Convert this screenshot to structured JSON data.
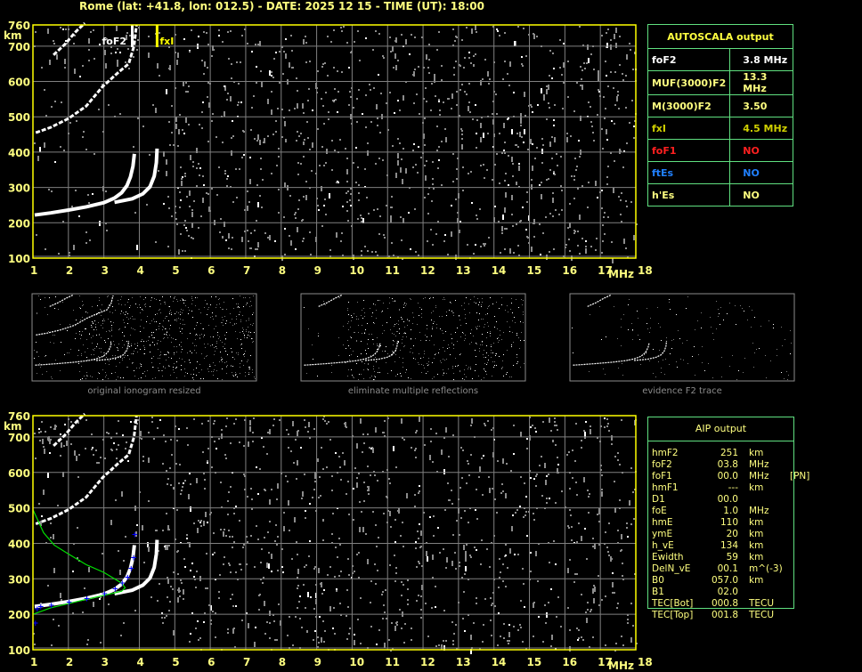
{
  "header": {
    "title": "Rome (lat: +41.8, lon: 012.5) - DATE: 2025 12 15 - TIME (UT): 18:00"
  },
  "colors": {
    "axis": "#ffff00",
    "grid": "#808080",
    "echo": "#ffffff",
    "noise": "#8c8c8c",
    "profile": "#00e000",
    "aip_points": "#0000ff",
    "table_border": "#60e080"
  },
  "autoscala": {
    "title": "AUTOSCALA output",
    "rows": [
      {
        "label": "foF2",
        "value": "3.8 MHz",
        "color": "#ffffff"
      },
      {
        "label": "MUF(3000)F2",
        "value": "13.3 MHz",
        "color": "#ffff80"
      },
      {
        "label": "M(3000)F2",
        "value": "3.50",
        "color": "#ffff80"
      },
      {
        "label": "fxI",
        "value": "4.5 MHz",
        "color": "#d0d000"
      },
      {
        "label": "foF1",
        "value": "NO",
        "color": "#ff2020"
      },
      {
        "label": "ftEs",
        "value": "NO",
        "color": "#2080ff"
      },
      {
        "label": "h'Es",
        "value": "NO",
        "color": "#ffff80"
      }
    ]
  },
  "aip": {
    "title": "AIP output",
    "rows": [
      [
        "hmF2",
        "251",
        "km",
        ""
      ],
      [
        "foF2",
        "03.8",
        "MHz",
        ""
      ],
      [
        "foF1",
        "00.0",
        "MHz",
        "[PN]"
      ],
      [
        "hmF1",
        "---",
        "km",
        ""
      ],
      [
        "D1",
        "00.0",
        "",
        ""
      ],
      [
        "foE",
        "1.0",
        "MHz",
        ""
      ],
      [
        "hmE",
        "110",
        "km",
        ""
      ],
      [
        "ymE",
        "20",
        "km",
        ""
      ],
      [
        "h_vE",
        "134",
        "km",
        ""
      ],
      [
        "Ewidth",
        "59",
        "km",
        ""
      ],
      [
        "DelN_vE",
        "00.1",
        "m^(-3)",
        ""
      ],
      [
        "B0",
        "057.0",
        "km",
        ""
      ],
      [
        "B1",
        "02.0",
        "",
        ""
      ],
      [
        "TEC[Bot]",
        "000.8",
        "TECU",
        ""
      ],
      [
        "TEC[Top]",
        "001.8",
        "TECU",
        ""
      ]
    ]
  },
  "mini_panels": [
    {
      "label": "original ionogram resized"
    },
    {
      "label": "eliminate multiple reflections"
    },
    {
      "label": "evidence F2 trace"
    }
  ],
  "chart_data": [
    {
      "type": "scatter",
      "xlabel": "MHz",
      "ylabel": "km",
      "xlim": [
        1,
        18
      ],
      "ylim": [
        100,
        760
      ],
      "xticks": [
        "1",
        "2",
        "3",
        "4",
        "5",
        "6",
        "7",
        "8",
        "9",
        "10",
        "11",
        "12",
        "13",
        "14",
        "15",
        "16",
        "17",
        "18"
      ],
      "yticks": [
        "100",
        "200",
        "300",
        "400",
        "500",
        "600",
        "700",
        "760"
      ],
      "grid": true,
      "markers": [
        {
          "label": "foF2",
          "x": 3.8,
          "color": "#ffffff"
        },
        {
          "label": "fxI",
          "x": 4.5,
          "color": "#ffff00"
        }
      ],
      "traces": [
        {
          "points": [
            [
              1.05,
              222
            ],
            [
              1.5,
              228
            ],
            [
              2,
              236
            ],
            [
              2.5,
              245
            ],
            [
              3,
              257
            ],
            [
              3.3,
              270
            ],
            [
              3.5,
              285
            ],
            [
              3.65,
              305
            ],
            [
              3.75,
              330
            ],
            [
              3.82,
              360
            ],
            [
              3.86,
              395
            ]
          ]
        },
        {
          "points": [
            [
              3.3,
              258
            ],
            [
              3.8,
              268
            ],
            [
              4.1,
              282
            ],
            [
              4.3,
              302
            ],
            [
              4.42,
              332
            ],
            [
              4.48,
              370
            ],
            [
              4.5,
              410
            ]
          ]
        },
        {
          "points": [
            [
              1.08,
              455
            ],
            [
              1.5,
              470
            ],
            [
              2,
              495
            ],
            [
              2.5,
              530
            ],
            [
              2.96,
              585
            ],
            [
              3.4,
              625
            ],
            [
              3.7,
              650
            ],
            [
              3.85,
              700
            ],
            [
              3.92,
              760
            ]
          ]
        },
        {
          "points": [
            [
              1.58,
              675
            ],
            [
              1.9,
              705
            ],
            [
              2.2,
              740
            ],
            [
              2.46,
              765
            ]
          ]
        }
      ]
    },
    {
      "type": "scatter",
      "xlabel": "MHz",
      "ylabel": "km",
      "xlim": [
        1,
        18
      ],
      "ylim": [
        100,
        760
      ],
      "xticks": [
        "1",
        "2",
        "3",
        "4",
        "5",
        "6",
        "7",
        "8",
        "9",
        "10",
        "11",
        "12",
        "13",
        "14",
        "15",
        "16",
        "17",
        "18"
      ],
      "yticks": [
        "100",
        "200",
        "300",
        "400",
        "500",
        "600",
        "700",
        "760"
      ],
      "grid": true,
      "traces": [
        {
          "points": [
            [
              1.05,
              222
            ],
            [
              1.5,
              228
            ],
            [
              2,
              236
            ],
            [
              2.5,
              245
            ],
            [
              3,
              257
            ],
            [
              3.3,
              270
            ],
            [
              3.5,
              285
            ],
            [
              3.65,
              305
            ],
            [
              3.75,
              330
            ],
            [
              3.82,
              360
            ],
            [
              3.86,
              395
            ]
          ]
        },
        {
          "points": [
            [
              3.3,
              258
            ],
            [
              3.8,
              268
            ],
            [
              4.1,
              282
            ],
            [
              4.3,
              302
            ],
            [
              4.42,
              332
            ],
            [
              4.48,
              370
            ],
            [
              4.5,
              410
            ]
          ]
        },
        {
          "points": [
            [
              1.08,
              455
            ],
            [
              1.5,
              470
            ],
            [
              2,
              495
            ],
            [
              2.5,
              530
            ],
            [
              2.96,
              585
            ],
            [
              3.4,
              625
            ],
            [
              3.7,
              650
            ],
            [
              3.85,
              700
            ],
            [
              3.92,
              760
            ]
          ]
        },
        {
          "points": [
            [
              1.58,
              675
            ],
            [
              1.9,
              705
            ],
            [
              2.2,
              740
            ],
            [
              2.46,
              765
            ]
          ]
        }
      ],
      "profile": [
        [
          1.0,
          495
        ],
        [
          1.3,
          430
        ],
        [
          1.6,
          395
        ],
        [
          2.0,
          370
        ],
        [
          2.5,
          340
        ],
        [
          3.0,
          318
        ],
        [
          3.3,
          300
        ],
        [
          3.5,
          288
        ],
        [
          3.6,
          275
        ],
        [
          3.5,
          265
        ],
        [
          3.2,
          258
        ],
        [
          2.5,
          242
        ],
        [
          2.0,
          230
        ],
        [
          1.5,
          218
        ],
        [
          1.0,
          200
        ]
      ],
      "aip_points": [
        [
          1.05,
          175
        ],
        [
          1.1,
          215
        ],
        [
          1.2,
          222
        ],
        [
          1.5,
          226
        ],
        [
          2,
          234
        ],
        [
          2.5,
          244
        ],
        [
          3,
          258
        ],
        [
          3.3,
          272
        ],
        [
          3.5,
          288
        ],
        [
          3.65,
          305
        ],
        [
          3.75,
          330
        ],
        [
          3.82,
          360
        ],
        [
          3.85,
          425
        ]
      ]
    }
  ]
}
